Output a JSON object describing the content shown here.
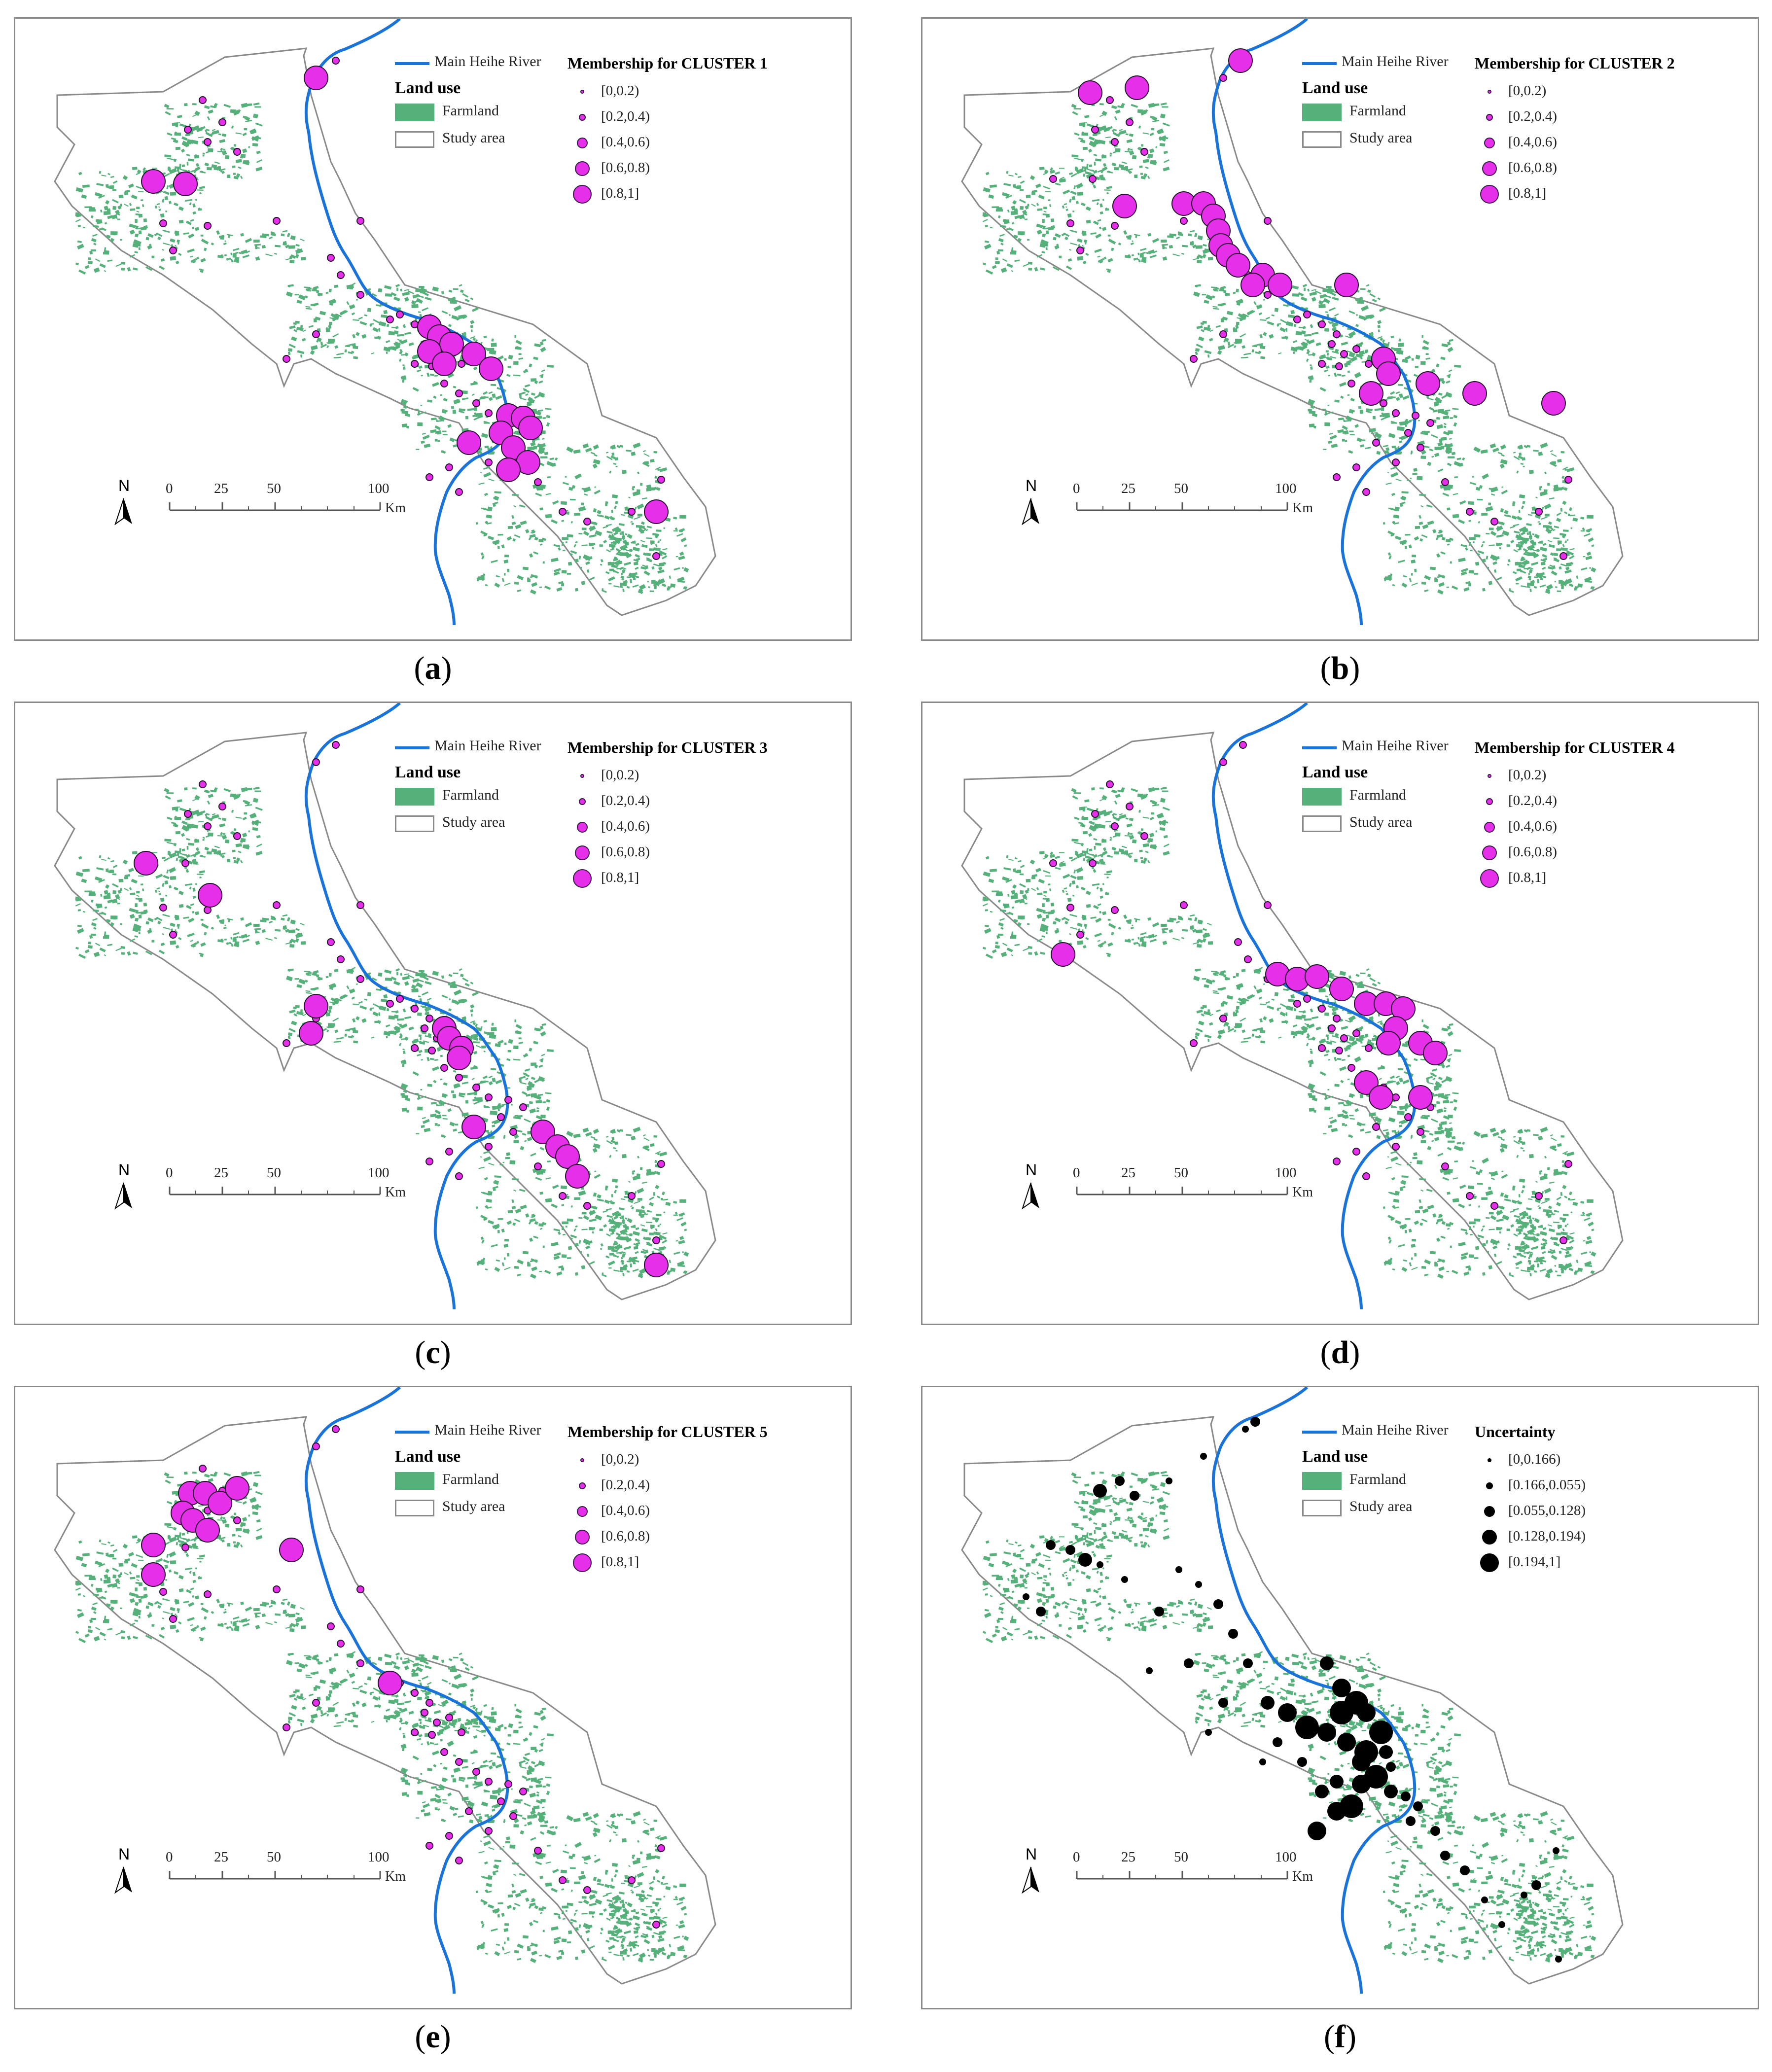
{
  "colors": {
    "river": "#1a73d9",
    "farmland": "#55b07a",
    "study_area_border": "#8a8a8a",
    "membership_fill": "#e52fe8",
    "uncertainty_fill": "#000000"
  },
  "legend_common": {
    "river": "Main Heihe River",
    "land_use_title": "Land use",
    "farmland": "Farmland",
    "study_area": "Study area"
  },
  "scale_bar": {
    "north": "N",
    "ticks": [
      "0",
      "25",
      "50",
      "100"
    ],
    "unit": "Km"
  },
  "panels": [
    {
      "caption_letter": "a",
      "legend_title": "Membership for CLUSTER 1",
      "classes": [
        "[0,0.2)",
        "[0.2,0.4)",
        "[0.4,0.6)",
        "[0.6,0.8)",
        "[0.8,1]"
      ],
      "symbol": "membership"
    },
    {
      "caption_letter": "b",
      "legend_title": "Membership for CLUSTER 2",
      "classes": [
        "[0,0.2)",
        "[0.2,0.4)",
        "[0.4,0.6)",
        "[0.6,0.8)",
        "[0.8,1]"
      ],
      "symbol": "membership"
    },
    {
      "caption_letter": "c",
      "legend_title": "Membership for CLUSTER 3",
      "classes": [
        "[0,0.2)",
        "[0.2,0.4)",
        "[0.4,0.6)",
        "[0.6,0.8)",
        "[0.8,1]"
      ],
      "symbol": "membership"
    },
    {
      "caption_letter": "d",
      "legend_title": "Membership for CLUSTER 4",
      "classes": [
        "[0,0.2)",
        "[0.2,0.4)",
        "[0.4,0.6)",
        "[0.6,0.8)",
        "[0.8,1]"
      ],
      "symbol": "membership"
    },
    {
      "caption_letter": "e",
      "legend_title": "Membership for CLUSTER 5",
      "classes": [
        "[0,0.2)",
        "[0.2,0.4)",
        "[0.4,0.6)",
        "[0.6,0.8)",
        "[0.8,1]"
      ],
      "symbol": "membership"
    },
    {
      "caption_letter": "f",
      "legend_title": "Uncertainty",
      "classes": [
        "[0,0.166)",
        "[0.166,0.055)",
        "[0.055,0.128)",
        "[0.128,0.194)",
        "[0.194,1]"
      ],
      "symbol": "uncertainty"
    }
  ]
}
